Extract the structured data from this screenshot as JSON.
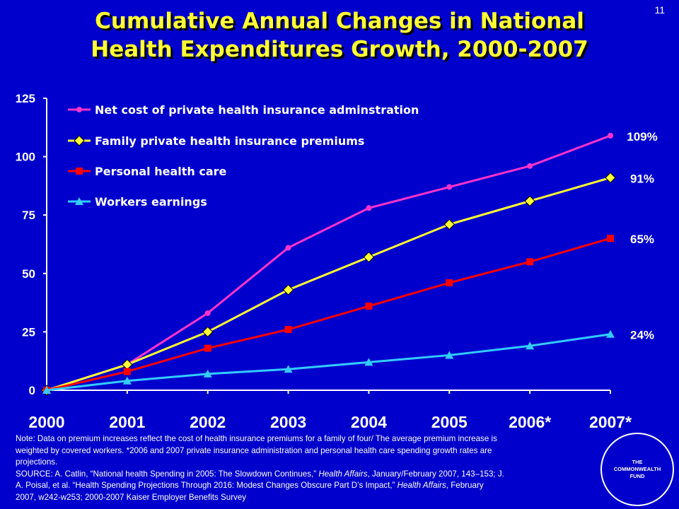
{
  "slide_number": "11",
  "title_line1": "Cumulative Annual Changes in National",
  "title_line2": "Health Expenditures Growth, 2000-2007",
  "note": {
    "line1": "Note: Data on premium increases reflect the cost of health insurance premiums for a family of four/ The average premium increase is",
    "line2": "weighted by covered workers. *2006 and 2007 private insurance administration and personal health care spending growth rates are",
    "line3": "projections.",
    "source1a": "SOURCE: A. Catlin, “National health Spending in 2005: The Slowdown Continues,” ",
    "source1b": "Health Affairs",
    "source1c": ", January/February 2007, 143–153; J.",
    "source2a": "A. Poisal, et al. “Health Spending Projections Through 2016: Modest Changes Obscure Part D’s Impact,” ",
    "source2b": "Health Affairs",
    "source2c": ", February",
    "source3": "2007, w242-w253; 2000-2007 Kaiser Employer Benefits Survey"
  },
  "logo_text": {
    "line1": "THE",
    "line2": "COMMONWEALTH",
    "line3": "FUND"
  },
  "chart_data": {
    "type": "line",
    "categories": [
      "2000",
      "2001",
      "2002",
      "2003",
      "2004",
      "2005",
      "2006*",
      "2007*"
    ],
    "ylim": [
      0,
      125
    ],
    "yticks": [
      0,
      25,
      50,
      75,
      100,
      125
    ],
    "grid": false,
    "legend_position": "top-left",
    "series": [
      {
        "name": "Net cost of private health insurance adminstration",
        "values": [
          0,
          11,
          33,
          61,
          78,
          87,
          96,
          109
        ],
        "color": "#FF33CC",
        "marker": "circle",
        "end_label": "109%"
      },
      {
        "name": "Family private health insurance premiums",
        "values": [
          0,
          11,
          25,
          43,
          57,
          71,
          81,
          91
        ],
        "color": "#FFFF33",
        "marker": "diamond",
        "end_label": "91%"
      },
      {
        "name": "Personal health care",
        "values": [
          0,
          8,
          18,
          26,
          36,
          46,
          55,
          65
        ],
        "color": "#FF0000",
        "marker": "square",
        "end_label": "65%"
      },
      {
        "name": "Workers earnings",
        "values": [
          0,
          4,
          7,
          9,
          12,
          15,
          19,
          24
        ],
        "color": "#33CCFF",
        "marker": "triangle",
        "end_label": "24%"
      }
    ]
  }
}
